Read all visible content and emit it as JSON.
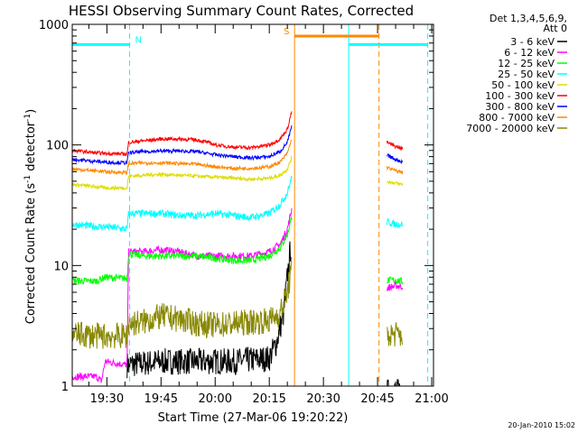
{
  "chart_data": {
    "type": "line",
    "title": "HESSI Observing Summary Count Rates, Corrected",
    "xlabel": "Start Time (27-Mar-06 19:20:22)",
    "ylabel_main": "Corrected Count Rate (s",
    "ylabel_sup1": "-1",
    "ylabel_mid": " detector",
    "ylabel_sup2": "-1",
    "ylabel_end": ")",
    "yscale": "log",
    "ylim": [
      1,
      1000
    ],
    "xlim_minutes": [
      1160.4,
      1260.5
    ],
    "x_ticks": [
      {
        "m": 1170,
        "label": "19:30"
      },
      {
        "m": 1185,
        "label": "19:45"
      },
      {
        "m": 1200,
        "label": "20:00"
      },
      {
        "m": 1215,
        "label": "20:15"
      },
      {
        "m": 1230,
        "label": "20:30"
      },
      {
        "m": 1245,
        "label": "20:45"
      },
      {
        "m": 1260,
        "label": "21:00"
      }
    ],
    "y_ticks": [
      {
        "v": 1,
        "label": "1"
      },
      {
        "v": 10,
        "label": "10"
      },
      {
        "v": 100,
        "label": "100"
      },
      {
        "v": 1000,
        "label": "1000"
      }
    ],
    "legend_header": [
      "Det 1,3,4,5,6,9,",
      "Att 0"
    ],
    "series": [
      {
        "name": "3 - 6 keV",
        "color": "#000000",
        "points": [
          [
            1175.6,
            1.5
          ],
          [
            1185,
            1.6
          ],
          [
            1195,
            1.6
          ],
          [
            1205,
            1.6
          ],
          [
            1215,
            1.7
          ],
          [
            1217,
            2.3
          ],
          [
            1219,
            4
          ],
          [
            1220,
            8
          ],
          [
            1221,
            15
          ]
        ],
        "tail": [
          [
            1247.6,
            0.9
          ],
          [
            1252,
            0.9
          ]
        ]
      },
      {
        "name": "6 - 12 keV",
        "color": "#ff00ff",
        "points": [
          [
            1160.5,
            1.2
          ],
          [
            1167,
            1.2
          ],
          [
            1168.5,
            1.1
          ],
          [
            1169.5,
            1.6
          ],
          [
            1175.6,
            1.5
          ],
          [
            1176,
            13
          ],
          [
            1180,
            13
          ],
          [
            1185,
            13.5
          ],
          [
            1190,
            13
          ],
          [
            1195,
            12
          ],
          [
            1200,
            12
          ],
          [
            1205,
            12
          ],
          [
            1210,
            12
          ],
          [
            1215,
            13
          ],
          [
            1218,
            15
          ],
          [
            1220,
            20
          ],
          [
            1221.3,
            30
          ]
        ],
        "tail": [
          [
            1247.6,
            6.5
          ],
          [
            1250,
            6.8
          ],
          [
            1252,
            6.7
          ]
        ]
      },
      {
        "name": "12 - 25 keV",
        "color": "#00ff00",
        "points": [
          [
            1160.5,
            7.5
          ],
          [
            1167,
            7.4
          ],
          [
            1169.5,
            8
          ],
          [
            1175.6,
            7.8
          ],
          [
            1176,
            12.5
          ],
          [
            1180,
            12
          ],
          [
            1185,
            12
          ],
          [
            1190,
            12
          ],
          [
            1195,
            12
          ],
          [
            1200,
            11.5
          ],
          [
            1205,
            11
          ],
          [
            1210,
            11
          ],
          [
            1215,
            12
          ],
          [
            1218,
            14
          ],
          [
            1220,
            18
          ],
          [
            1221.3,
            26
          ]
        ],
        "tail": [
          [
            1247.6,
            7.5
          ],
          [
            1250,
            7.6
          ],
          [
            1252,
            7.3
          ]
        ]
      },
      {
        "name": "25 - 50 keV",
        "color": "#00ffff",
        "points": [
          [
            1160.5,
            22
          ],
          [
            1167,
            21
          ],
          [
            1169.5,
            21
          ],
          [
            1175.6,
            20
          ],
          [
            1176,
            27
          ],
          [
            1180,
            27
          ],
          [
            1185,
            27
          ],
          [
            1190,
            26
          ],
          [
            1195,
            26
          ],
          [
            1200,
            27
          ],
          [
            1205,
            26
          ],
          [
            1210,
            25
          ],
          [
            1215,
            27
          ],
          [
            1218,
            32
          ],
          [
            1220,
            40
          ],
          [
            1221.3,
            55
          ]
        ],
        "tail": [
          [
            1247.6,
            23
          ],
          [
            1250,
            22
          ],
          [
            1252,
            22
          ]
        ]
      },
      {
        "name": "50 - 100 keV",
        "color": "#dddd00",
        "points": [
          [
            1160.5,
            47
          ],
          [
            1167,
            45
          ],
          [
            1169.5,
            44
          ],
          [
            1175.6,
            44
          ],
          [
            1176,
            55
          ],
          [
            1180,
            56
          ],
          [
            1185,
            57
          ],
          [
            1190,
            56
          ],
          [
            1195,
            55
          ],
          [
            1200,
            54
          ],
          [
            1205,
            53
          ],
          [
            1210,
            52
          ],
          [
            1215,
            53
          ],
          [
            1218,
            56
          ],
          [
            1220,
            63
          ],
          [
            1221.3,
            80
          ]
        ],
        "tail": [
          [
            1247.6,
            50
          ],
          [
            1250,
            48
          ],
          [
            1252,
            47
          ]
        ]
      },
      {
        "name": "100 - 300 keV",
        "color": "#ff0000",
        "points": [
          [
            1160.5,
            90
          ],
          [
            1167,
            86
          ],
          [
            1169.5,
            85
          ],
          [
            1175.6,
            84
          ],
          [
            1176,
            105
          ],
          [
            1180,
            108
          ],
          [
            1185,
            112
          ],
          [
            1190,
            112
          ],
          [
            1195,
            110
          ],
          [
            1198,
            105
          ],
          [
            1200,
            100
          ],
          [
            1205,
            96
          ],
          [
            1210,
            95
          ],
          [
            1215,
            100
          ],
          [
            1218,
            112
          ],
          [
            1220,
            135
          ],
          [
            1221.3,
            195
          ]
        ],
        "tail": [
          [
            1247.6,
            105
          ],
          [
            1250,
            97
          ],
          [
            1252,
            93
          ]
        ]
      },
      {
        "name": "300 - 800 keV",
        "color": "#0000ff",
        "points": [
          [
            1160.5,
            76
          ],
          [
            1167,
            73
          ],
          [
            1169.5,
            72
          ],
          [
            1175.6,
            71
          ],
          [
            1176,
            86
          ],
          [
            1180,
            88
          ],
          [
            1185,
            89
          ],
          [
            1190,
            89
          ],
          [
            1195,
            88
          ],
          [
            1200,
            83
          ],
          [
            1205,
            80
          ],
          [
            1210,
            78
          ],
          [
            1215,
            80
          ],
          [
            1218,
            88
          ],
          [
            1220,
            105
          ],
          [
            1221.3,
            145
          ]
        ],
        "tail": [
          [
            1247.6,
            82
          ],
          [
            1250,
            76
          ],
          [
            1252,
            72
          ]
        ]
      },
      {
        "name": "800 - 7000 keV",
        "color": "#ff8800",
        "points": [
          [
            1160.5,
            63
          ],
          [
            1167,
            61
          ],
          [
            1169.5,
            60
          ],
          [
            1175.6,
            59
          ],
          [
            1176,
            70
          ],
          [
            1180,
            71
          ],
          [
            1185,
            71
          ],
          [
            1190,
            70
          ],
          [
            1195,
            69
          ],
          [
            1200,
            66
          ],
          [
            1205,
            64
          ],
          [
            1210,
            64
          ],
          [
            1215,
            66
          ],
          [
            1218,
            72
          ],
          [
            1220,
            85
          ],
          [
            1221.3,
            115
          ]
        ],
        "tail": [
          [
            1247.6,
            65
          ],
          [
            1250,
            61
          ],
          [
            1252,
            59
          ]
        ]
      },
      {
        "name": "7000 - 20000 keV",
        "color": "#888800",
        "points": [
          [
            1160.5,
            2.7
          ],
          [
            1167,
            2.6
          ],
          [
            1169.5,
            2.6
          ],
          [
            1175.6,
            2.6
          ],
          [
            1176,
            3.3
          ],
          [
            1180,
            3.4
          ],
          [
            1185,
            3.8
          ],
          [
            1190,
            3.6
          ],
          [
            1195,
            3.3
          ],
          [
            1200,
            3.2
          ],
          [
            1205,
            3.3
          ],
          [
            1210,
            3.4
          ],
          [
            1215,
            3.5
          ],
          [
            1218,
            4
          ],
          [
            1220,
            6
          ],
          [
            1221.3,
            10
          ]
        ],
        "tail": [
          [
            1247.6,
            2.6
          ],
          [
            1250,
            2.7
          ],
          [
            1252,
            2.6
          ]
        ]
      }
    ],
    "bars": [
      {
        "label": "N",
        "color": "#00ffff",
        "start": 1160.5,
        "end": 1176.3,
        "level": 680,
        "style": "dashed-end"
      },
      {
        "label": "S",
        "color": "#ff8800",
        "start": 1222.0,
        "end": 1245.4,
        "level": 800,
        "style": "dashed-end"
      },
      {
        "label": "",
        "color": "#00ffff",
        "start": 1237.0,
        "end": 1258.9,
        "level": 680,
        "style": "dashed-end"
      }
    ],
    "vlines": [
      {
        "m": 1222.0,
        "color": "#ff8800",
        "style": "solid"
      },
      {
        "m": 1237.0,
        "color": "#00ffff",
        "style": "solid"
      },
      {
        "m": 1176.3,
        "color": "#00ffff",
        "style": "dashed"
      },
      {
        "m": 1245.4,
        "color": "#ff8800",
        "style": "dashed"
      },
      {
        "m": 1258.9,
        "color": "#00ffff",
        "style": "dashed"
      }
    ],
    "grid": false,
    "legend_position": "top-right"
  },
  "timestamp": "20-Jan-2010 15:02"
}
